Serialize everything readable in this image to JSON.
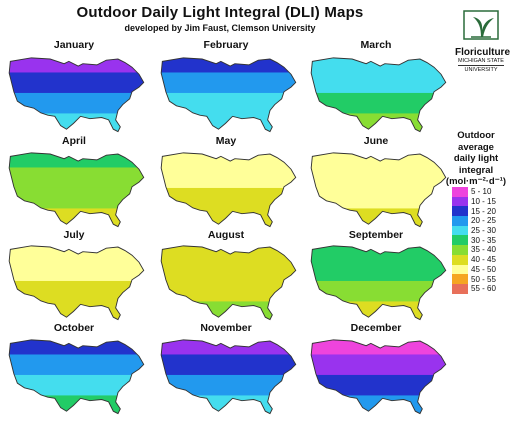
{
  "header": {
    "title": "Outdoor Daily Light Integral (DLI) Maps",
    "subtitle": "developed by Jim Faust, Clemson University"
  },
  "logo": {
    "line1": "Floriculture",
    "line2": "MICHIGAN STATE",
    "line3": "UNIVERSITY"
  },
  "legend": {
    "title_lines": [
      "Outdoor",
      "average",
      "daily light",
      "integral"
    ],
    "units": "(mol·m⁻²·d⁻¹)",
    "bins": [
      {
        "label": "5 - 10",
        "color": "#ee44dd"
      },
      {
        "label": "10 - 15",
        "color": "#9933ee"
      },
      {
        "label": "15 - 20",
        "color": "#2233cc"
      },
      {
        "label": "20 - 25",
        "color": "#2299ee"
      },
      {
        "label": "25 - 30",
        "color": "#44ddee"
      },
      {
        "label": "30 - 35",
        "color": "#22cc66"
      },
      {
        "label": "35 - 40",
        "color": "#88dd33"
      },
      {
        "label": "40 - 45",
        "color": "#dddd22"
      },
      {
        "label": "45 - 50",
        "color": "#ffff99"
      },
      {
        "label": "50 - 55",
        "color": "#f5a623"
      },
      {
        "label": "55 - 60",
        "color": "#e8705a"
      }
    ]
  },
  "months": [
    {
      "name": "January",
      "bands": [
        "#9933ee",
        "#2233cc",
        "#2299ee",
        "#44ddee"
      ]
    },
    {
      "name": "February",
      "bands": [
        "#2233cc",
        "#2299ee",
        "#44ddee",
        "#44ddee"
      ]
    },
    {
      "name": "March",
      "bands": [
        "#44ddee",
        "#44ddee",
        "#22cc66",
        "#88dd33"
      ]
    },
    {
      "name": "April",
      "bands": [
        "#22cc66",
        "#88dd33",
        "#88dd33",
        "#dddd22"
      ]
    },
    {
      "name": "May",
      "bands": [
        "#ffff99",
        "#ffff99",
        "#dddd22",
        "#dddd22"
      ]
    },
    {
      "name": "June",
      "bands": [
        "#ffff99",
        "#ffff99",
        "#ffff99",
        "#dddd22"
      ]
    },
    {
      "name": "July",
      "bands": [
        "#ffff99",
        "#ffff99",
        "#dddd22",
        "#dddd22"
      ]
    },
    {
      "name": "August",
      "bands": [
        "#dddd22",
        "#dddd22",
        "#dddd22",
        "#88dd33"
      ]
    },
    {
      "name": "September",
      "bands": [
        "#22cc66",
        "#22cc66",
        "#88dd33",
        "#dddd22"
      ]
    },
    {
      "name": "October",
      "bands": [
        "#2233cc",
        "#2299ee",
        "#44ddee",
        "#22cc66"
      ]
    },
    {
      "name": "November",
      "bands": [
        "#9933ee",
        "#2233cc",
        "#2299ee",
        "#44ddee"
      ]
    },
    {
      "name": "December",
      "bands": [
        "#ee44dd",
        "#9933ee",
        "#2233cc",
        "#2299ee"
      ]
    }
  ]
}
